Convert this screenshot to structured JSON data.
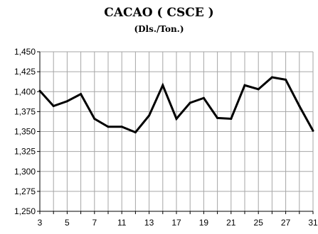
{
  "chart_data": {
    "type": "line",
    "title": "CACAO ( CSCE )",
    "subtitle": "(Dls./Ton.)",
    "xlabel": "",
    "ylabel": "",
    "x_tick_labels": [
      "3",
      "5",
      "7",
      "11",
      "13",
      "17",
      "19",
      "21",
      "25",
      "27",
      "31"
    ],
    "x": [
      3,
      4,
      5,
      6,
      7,
      10,
      11,
      12,
      13,
      14,
      17,
      18,
      19,
      20,
      21,
      24,
      25,
      26,
      27,
      28,
      31
    ],
    "x_sequence_index": [
      0,
      1,
      2,
      3,
      4,
      5,
      6,
      7,
      8,
      9,
      10,
      11,
      12,
      13,
      14,
      15,
      16,
      17,
      18,
      19,
      20
    ],
    "values": [
      1401,
      1382,
      1388,
      1397,
      1366,
      1356,
      1356,
      1349,
      1370,
      1408,
      1366,
      1386,
      1392,
      1367,
      1366,
      1408,
      1403,
      1418,
      1415,
      1382,
      1351
    ],
    "ylim": [
      1250,
      1450
    ],
    "y_ticks": [
      1250,
      1275,
      1300,
      1325,
      1350,
      1375,
      1400,
      1425,
      1450
    ],
    "y_tick_labels": [
      "1,250",
      "1,275",
      "1,300",
      "1,325",
      "1,350",
      "1,375",
      "1,400",
      "1,425",
      "1,450"
    ],
    "grid": true,
    "line_color": "#000000",
    "grid_color": "#a6a6a6"
  }
}
